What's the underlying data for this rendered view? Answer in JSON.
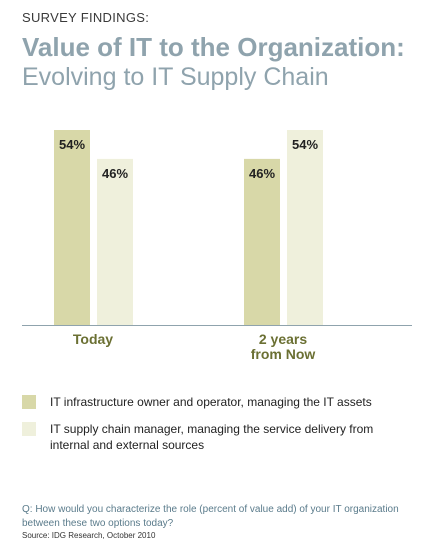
{
  "header": {
    "kicker": "SURVEY FINDINGS:",
    "title": "Value of IT to the Organization:",
    "subtitle": "Evolving to IT Supply Chain"
  },
  "chart_data": {
    "type": "bar",
    "categories": [
      "Today",
      "2 years from Now"
    ],
    "category_lines": [
      [
        "Today"
      ],
      [
        "2 years",
        "from Now"
      ]
    ],
    "series": [
      {
        "name": "IT infrastructure owner and operator, managing the IT assets",
        "values": [
          54,
          46
        ],
        "color": "#d8d8a8"
      },
      {
        "name": "IT supply chain manager, managing the service delivery from internal and external sources",
        "values": [
          46,
          54
        ],
        "color": "#eff0dc"
      }
    ],
    "value_suffix": "%",
    "ylim": [
      0,
      54
    ],
    "grid": false,
    "axis_line_color": "#8fa3ad"
  },
  "legend": [
    {
      "label": "IT infrastructure owner and operator, managing the IT assets",
      "color": "#d8d8a8"
    },
    {
      "label": "IT supply chain manager, managing the service delivery from internal and external sources",
      "color": "#eff0dc"
    }
  ],
  "footer": {
    "question": "Q:  How would you characterize the role (percent of value add) of your IT organization between these two options today?",
    "source": "Source: IDG Research, October 2010"
  }
}
